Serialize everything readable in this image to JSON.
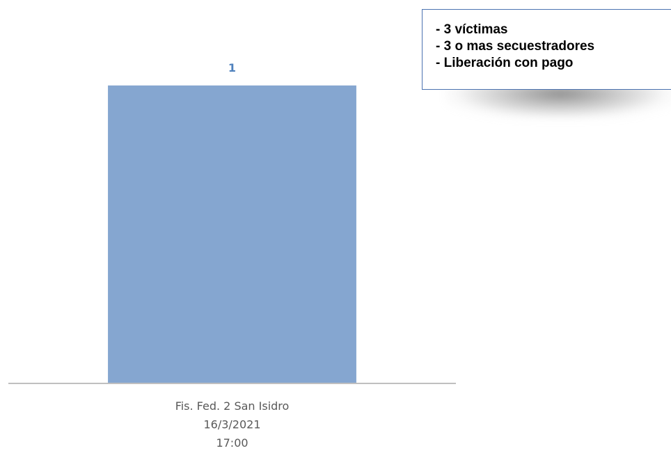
{
  "chart_data": {
    "type": "bar",
    "categories": [
      "Fis. Fed. 2 San Isidro\n16/3/2021\n17:00"
    ],
    "values": [
      1
    ],
    "data_labels": [
      "1"
    ],
    "title": "",
    "xlabel": "",
    "ylabel": "",
    "ylim": [
      0,
      1.1
    ],
    "grid": false,
    "legend": "none",
    "bar_color": "#85a6d0",
    "axis_color": "#bfbfbf",
    "label_color": "#4f81bd"
  },
  "annotation": {
    "lines": [
      "- 3 víctimas",
      "- 3 o mas secuestradores",
      "- Liberación con pago"
    ],
    "border_color": "#4a72b0"
  }
}
